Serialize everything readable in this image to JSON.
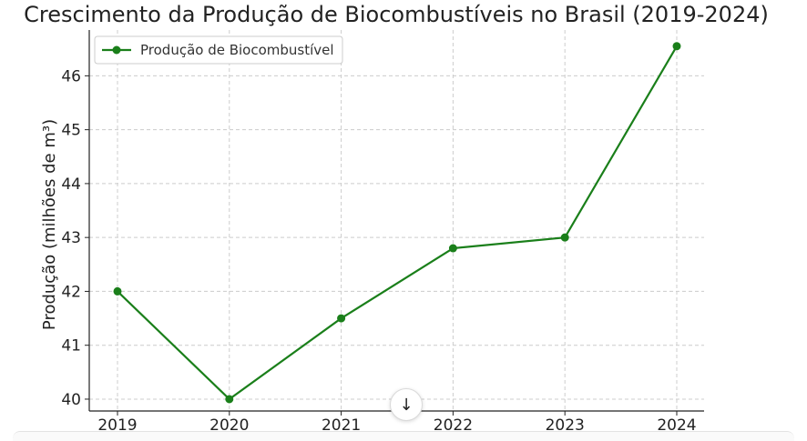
{
  "chart_data": {
    "type": "line",
    "title": "Crescimento da Produção de Biocombustíveis no Brasil (2019-2024)",
    "xlabel": "",
    "ylabel": "Produção (milhões de m³)",
    "categories": [
      "2019",
      "2020",
      "2021",
      "2022",
      "2023",
      "2024"
    ],
    "series": [
      {
        "name": "Produção de Biocombustível",
        "values": [
          42.0,
          40.0,
          41.5,
          42.8,
          43.0,
          46.55
        ]
      }
    ],
    "yticks": [
      "40",
      "41",
      "42",
      "43",
      "44",
      "45",
      "46"
    ],
    "ylim": [
      39.78,
      46.85
    ],
    "grid": true,
    "legend": "top-left",
    "color": "#1a7f1a"
  },
  "ui": {
    "scroll_icon": "arrow-down-icon",
    "scroll_glyph": "↓"
  }
}
